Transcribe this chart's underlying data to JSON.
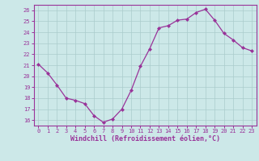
{
  "x": [
    0,
    1,
    2,
    3,
    4,
    5,
    6,
    7,
    8,
    9,
    10,
    11,
    12,
    13,
    14,
    15,
    16,
    17,
    18,
    19,
    20,
    21,
    22,
    23
  ],
  "y": [
    21.1,
    20.3,
    19.2,
    18.0,
    17.8,
    17.5,
    16.4,
    15.8,
    16.1,
    17.0,
    18.7,
    20.9,
    22.5,
    24.4,
    24.6,
    25.1,
    25.2,
    25.8,
    26.1,
    25.1,
    23.9,
    23.3,
    22.6,
    22.3
  ],
  "line_color": "#993399",
  "marker": "D",
  "marker_size": 2,
  "bg_color": "#cce8e8",
  "grid_color": "#aacccc",
  "xlabel": "Windchill (Refroidissement éolien,°C)",
  "xlabel_color": "#993399",
  "tick_color": "#993399",
  "ylim": [
    15.5,
    26.5
  ],
  "yticks": [
    16,
    17,
    18,
    19,
    20,
    21,
    22,
    23,
    24,
    25,
    26
  ],
  "xticks": [
    0,
    1,
    2,
    3,
    4,
    5,
    6,
    7,
    8,
    9,
    10,
    11,
    12,
    13,
    14,
    15,
    16,
    17,
    18,
    19,
    20,
    21,
    22,
    23
  ],
  "spine_color": "#993399",
  "tick_fontsize": 5.0,
  "xlabel_fontsize": 6.0
}
